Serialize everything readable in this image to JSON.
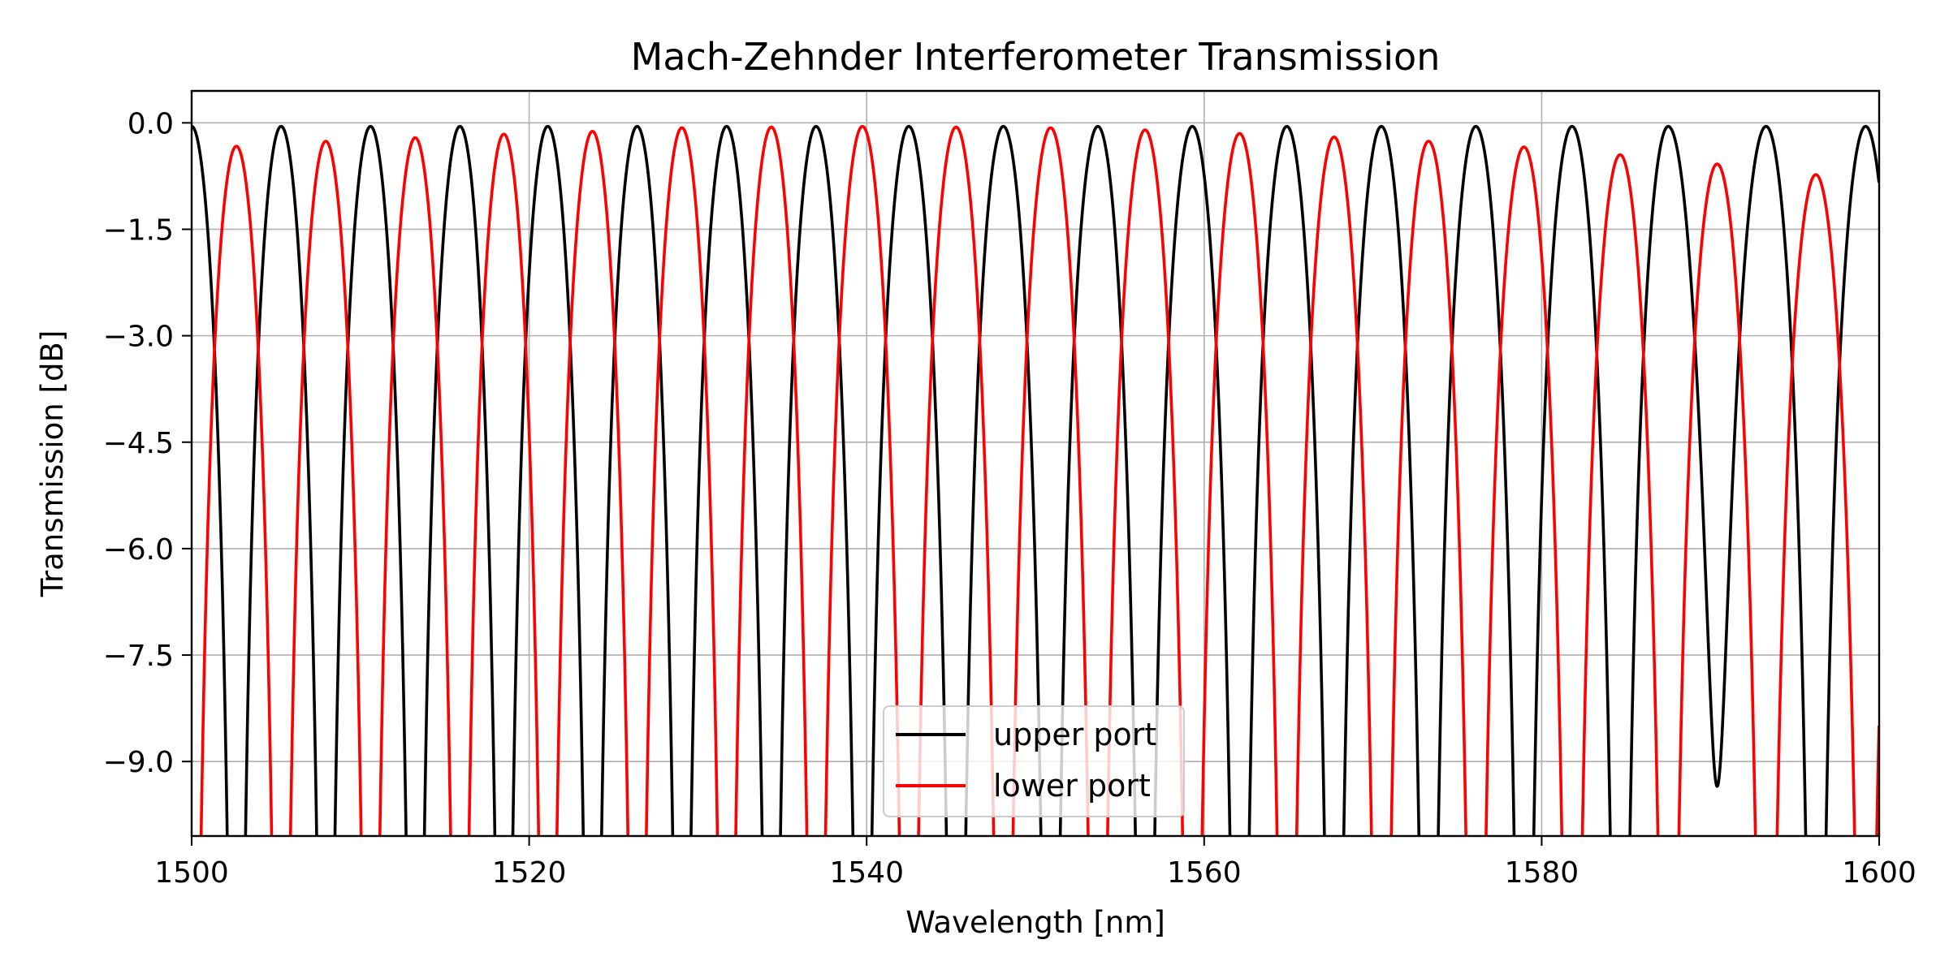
{
  "chart_data": {
    "type": "line",
    "title": "Mach-Zehnder Interferometer Transmission",
    "xlabel": "Wavelength [nm]",
    "ylabel": "Transmission [dB]",
    "xlim": [
      1500,
      1600
    ],
    "ylim": [
      -10.05,
      0.45
    ],
    "x_ticks": [
      1500,
      1520,
      1540,
      1560,
      1580,
      1600
    ],
    "x_tick_labels": [
      "1500",
      "1520",
      "1540",
      "1560",
      "1580",
      "1600"
    ],
    "y_ticks": [
      0.0,
      -1.5,
      -3.0,
      -4.5,
      -6.0,
      -7.5,
      -9.0
    ],
    "y_tick_labels": [
      "0.0",
      "−1.5",
      "−3.0",
      "−4.5",
      "−6.0",
      "−7.5",
      "−9.0"
    ],
    "grid": true,
    "legend_position": "lower-center",
    "series": [
      {
        "name": "upper port",
        "color": "#000000",
        "peak_wavelengths_nm": [
          1500.0,
          1505.3,
          1510.6,
          1515.9,
          1521.1,
          1526.4,
          1531.7,
          1537.0,
          1542.5,
          1548.1,
          1553.7,
          1559.3,
          1564.9,
          1570.5,
          1576.1,
          1581.8,
          1587.5,
          1593.3,
          1599.2
        ],
        "peak_values_db": [
          -0.05,
          -0.05,
          -0.05,
          -0.05,
          -0.05,
          -0.05,
          -0.05,
          -0.05,
          -0.05,
          -0.05,
          -0.05,
          -0.05,
          -0.05,
          -0.05,
          -0.05,
          -0.05,
          -0.05,
          -0.05,
          -0.05
        ],
        "trough_wavelengths_nm": [
          1502.65,
          1507.95,
          1513.25,
          1518.5,
          1523.75,
          1529.05,
          1534.35,
          1539.75,
          1545.3,
          1550.9,
          1556.5,
          1562.1,
          1567.7,
          1573.3,
          1578.95,
          1584.65,
          1590.4,
          1596.25
        ],
        "trough_values_db": [
          -40,
          -40,
          -40,
          -40,
          -40,
          -40,
          -40,
          -40,
          -40,
          -40,
          -40,
          -40,
          -40,
          -40,
          -40,
          -40,
          -9.35,
          -40
        ],
        "end_value_db": -0.7
      },
      {
        "name": "lower port",
        "color": "#ff0000",
        "peak_wavelengths_nm": [
          1502.65,
          1507.95,
          1513.25,
          1518.5,
          1523.75,
          1529.05,
          1534.35,
          1539.75,
          1545.3,
          1550.9,
          1556.5,
          1562.1,
          1567.7,
          1573.3,
          1578.95,
          1584.65,
          1590.4,
          1596.25
        ],
        "peak_values_db": [
          -0.33,
          -0.26,
          -0.21,
          -0.16,
          -0.12,
          -0.07,
          -0.06,
          -0.05,
          -0.06,
          -0.07,
          -0.1,
          -0.15,
          -0.2,
          -0.26,
          -0.34,
          -0.45,
          -0.58,
          -0.73
        ],
        "trough_wavelengths_nm": [
          1500.0,
          1505.3,
          1510.6,
          1515.9,
          1521.1,
          1526.4,
          1531.7,
          1537.0,
          1542.5,
          1548.1,
          1553.7,
          1559.3,
          1564.9,
          1570.5,
          1576.1,
          1581.8,
          1587.5,
          1593.3,
          1599.2
        ],
        "trough_values_db": [
          -40,
          -40,
          -40,
          -40,
          -40,
          -40,
          -40,
          -40,
          -40,
          -40,
          -40,
          -40,
          -40,
          -40,
          -40,
          -40,
          -40,
          -40,
          -40
        ],
        "end_value_db": -8.6
      }
    ]
  }
}
